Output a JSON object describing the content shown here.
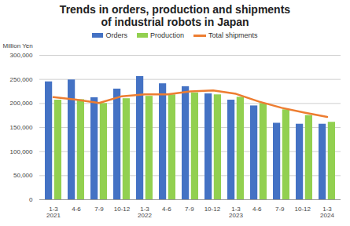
{
  "chart_data": {
    "type": "bar",
    "title": "Trends in orders, production and shipments\nof industrial robots in Japan",
    "y_label": "Million Yen",
    "categories": [
      "1-3\n2021",
      "4-6",
      "7-9",
      "10-12",
      "1-3\n2022",
      "4-6 ",
      "7-9 ",
      "10-12 ",
      "1-3\n2023",
      "4-6  ",
      "7-9  ",
      "10-12  ",
      "1-3\n2024"
    ],
    "series": [
      {
        "name": "Orders",
        "type": "bar",
        "color": "#4472c4",
        "values": [
          245000,
          249000,
          212000,
          230000,
          256000,
          241000,
          235000,
          220000,
          207000,
          195000,
          159000,
          157000,
          157000
        ]
      },
      {
        "name": "Production",
        "type": "bar",
        "color": "#92d050",
        "values": [
          207000,
          208000,
          200000,
          210000,
          215000,
          218000,
          222000,
          218000,
          213000,
          200000,
          187000,
          175000,
          161000
        ]
      },
      {
        "name": "Total shipments",
        "type": "line",
        "color": "#ed7d31",
        "values": [
          213000,
          208000,
          201000,
          215000,
          219000,
          219000,
          225000,
          227000,
          220000,
          204000,
          191000,
          181000,
          172000
        ]
      }
    ],
    "ylim": [
      0,
      300000
    ],
    "yticks": [
      0,
      {
        "value": 50000,
        "label": "50,000"
      },
      {
        "value": 100000,
        "label": "100,000"
      },
      {
        "value": 150000,
        "label": "150,000"
      },
      {
        "value": 200000,
        "label": "200,000"
      },
      {
        "value": 250000,
        "label": "250,000"
      },
      {
        "value": 300000,
        "label": "300,000"
      }
    ],
    "grid": true,
    "legend": "top"
  }
}
